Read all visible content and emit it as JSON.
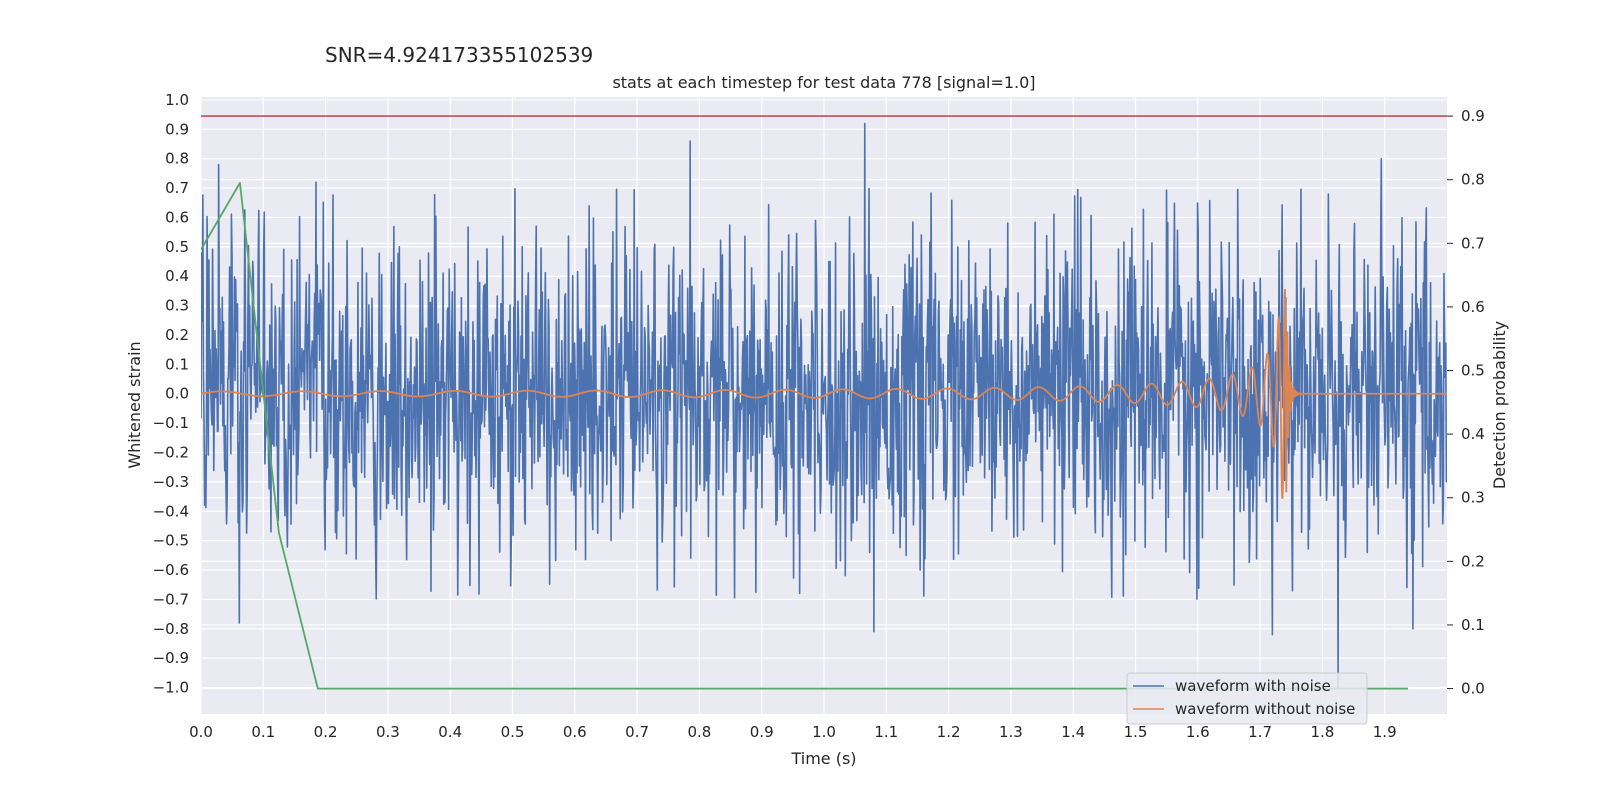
{
  "chart_data": {
    "type": "line",
    "suptitle": "SNR=4.924173355102539",
    "title": "stats at each timestep for test data 778 [signal=1.0]",
    "xlabel": "Time (s)",
    "ylabel_left": "Whitened strain",
    "ylabel_right": "Detection probability",
    "xlim": [
      0.0,
      2.0
    ],
    "ylim_left": [
      -1.09,
      1.01
    ],
    "ylim_right": [
      -0.04,
      0.93
    ],
    "x_ticks": [
      "0.0",
      "0.1",
      "0.2",
      "0.3",
      "0.4",
      "0.5",
      "0.6",
      "0.7",
      "0.8",
      "0.9",
      "1.0",
      "1.1",
      "1.2",
      "1.3",
      "1.4",
      "1.5",
      "1.6",
      "1.7",
      "1.8",
      "1.9"
    ],
    "y_ticks_left": [
      "1.0",
      "0.9",
      "0.8",
      "0.7",
      "0.6",
      "0.5",
      "0.4",
      "0.3",
      "0.2",
      "0.1",
      "0.0",
      "−0.1",
      "−0.2",
      "−0.3",
      "−0.4",
      "−0.5",
      "−0.6",
      "−0.7",
      "−0.8",
      "−0.9",
      "−1.0"
    ],
    "y_ticks_right": [
      "0.9",
      "0.8",
      "0.7",
      "0.6",
      "0.5",
      "0.4",
      "0.3",
      "0.2",
      "0.1",
      "0.0"
    ],
    "grid": true,
    "legend_position": "lower-right",
    "threshold": {
      "axis": "right",
      "y": 0.9,
      "color": "#c44e52"
    },
    "series": [
      {
        "name": "waveform with noise",
        "axis": "left",
        "color": "#4c72b0",
        "samples": 2048,
        "duration": 2.0,
        "noise_std": 0.26,
        "peaks": [
          [
            0.028,
            0.78
          ],
          [
            0.062,
            -0.78
          ],
          [
            0.185,
            0.72
          ],
          [
            0.785,
            0.86
          ],
          [
            1.065,
            0.92
          ],
          [
            1.08,
            -0.81
          ],
          [
            1.72,
            -0.82
          ],
          [
            1.825,
            -1.0
          ],
          [
            1.895,
            0.8
          ],
          [
            1.945,
            -0.8
          ]
        ]
      },
      {
        "name": "waveform without noise",
        "axis": "left",
        "color": "#dd8452",
        "type": "chirp",
        "t_merger": 1.742,
        "amp_early": 0.008,
        "amp_peak": 0.36,
        "x_end": 2.0
      },
      {
        "name": "",
        "axis": "right",
        "color": "#55a868",
        "x": [
          0.0,
          0.0625,
          0.125,
          0.1875,
          0.25,
          0.5,
          0.75,
          1.0,
          1.25,
          1.5,
          1.75,
          1.9375
        ],
        "y": [
          0.69,
          0.795,
          0.245,
          0.0,
          0.0,
          0.0,
          0.0,
          0.0,
          0.0,
          0.0,
          0.0,
          0.0
        ]
      }
    ]
  }
}
